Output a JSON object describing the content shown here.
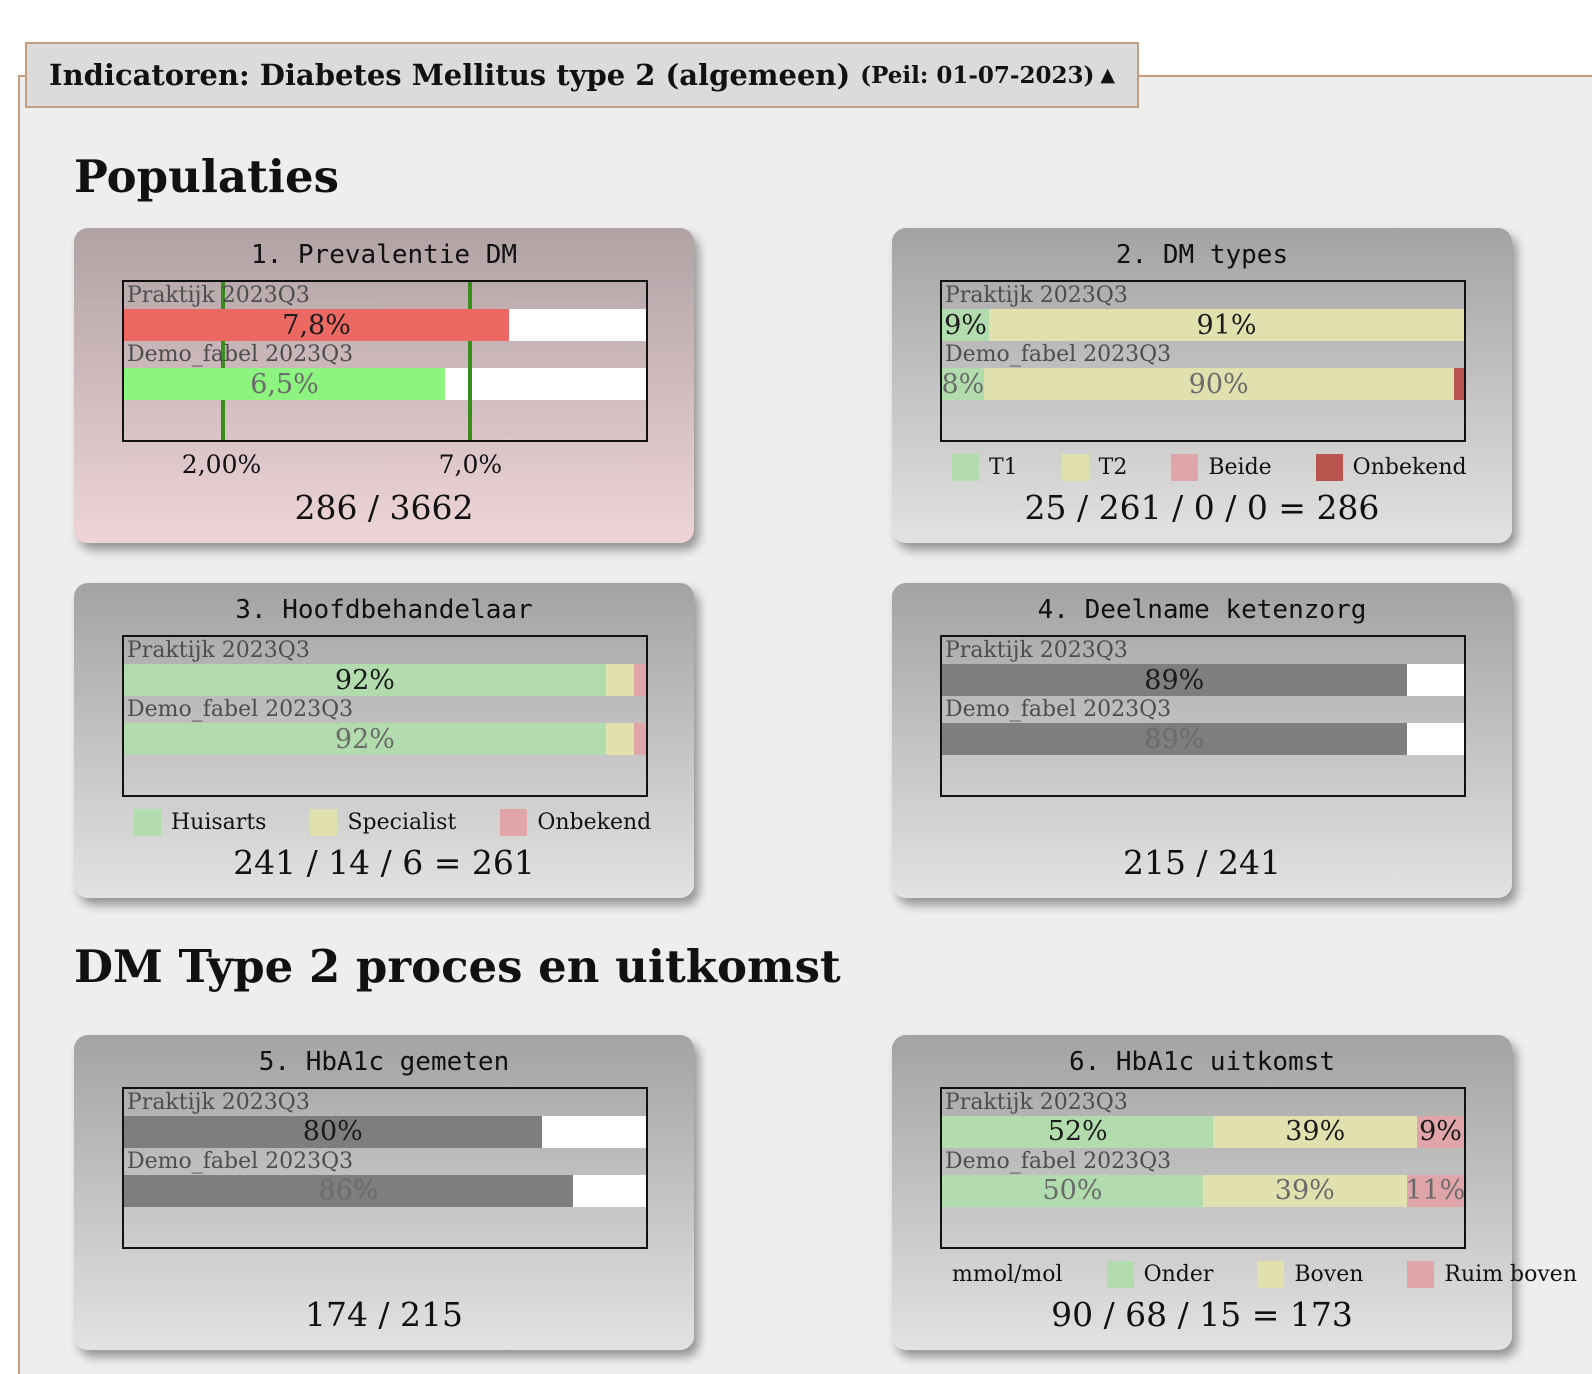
{
  "header": {
    "title": "Indicatoren: Diabetes Mellitus type 2 (algemeen)",
    "peil": "(Peil: 01-07-2023)",
    "collapse_icon": "▲"
  },
  "colors": {
    "page_bg": "#ffffff",
    "panel_bg": "#eeeeee",
    "frame_border": "#c49e7e",
    "header_bg": "#dbdbdb",
    "card_gray_top": "#a3a3a3",
    "card_gray_bottom": "#e2e2e2",
    "card_alert_top": "#b1a2a4",
    "card_alert_bottom": "#eed4d8",
    "threshold_line": "#3a8c1c",
    "bar_red": "#ec6862",
    "bar_bright_green": "#8df57f",
    "bar_green": "#b3dcae",
    "bar_khaki": "#e1e1b0",
    "bar_pink": "#dfa5a9",
    "bar_brick": "#b8544d",
    "bar_gray": "#7e7e7e"
  },
  "sections": [
    {
      "heading": "Populaties",
      "cards": [
        {
          "title": "1. Prevalentie DM",
          "variant": "alert",
          "axis_max": 10.57,
          "rows": [
            {
              "label": "Praktijk 2023Q3",
              "muted": false,
              "segments": [
                {
                  "value": 7.8,
                  "text": "7,8%",
                  "color": "#ec6862"
                }
              ]
            },
            {
              "label": "Demo_fabel 2023Q3",
              "muted": true,
              "segments": [
                {
                  "value": 6.5,
                  "text": "6,5%",
                  "color": "#8df57f"
                }
              ]
            }
          ],
          "thresholds": [
            {
              "value": 2.0,
              "label": "2,00%"
            },
            {
              "value": 7.0,
              "label": "7,0%"
            }
          ],
          "total": "286 / 3662"
        },
        {
          "title": "2. DM types",
          "variant": "normal",
          "axis_max": 100,
          "rows": [
            {
              "label": "Praktijk 2023Q3",
              "muted": false,
              "segments": [
                {
                  "value": 9,
                  "text": "9%",
                  "color": "#b3dcae"
                },
                {
                  "value": 91,
                  "text": "91%",
                  "color": "#e1e1b0"
                }
              ]
            },
            {
              "label": "Demo_fabel 2023Q3",
              "muted": true,
              "segments": [
                {
                  "value": 8,
                  "text": "8%",
                  "color": "#b3dcae"
                },
                {
                  "value": 90,
                  "text": "90%",
                  "color": "#e1e1b0"
                },
                {
                  "value": 2,
                  "text": "",
                  "color": "#b8544d"
                }
              ]
            }
          ],
          "legend": [
            {
              "label": "T1",
              "color": "#b3dcae"
            },
            {
              "label": "T2",
              "color": "#e1e1b0"
            },
            {
              "label": "Beide",
              "color": "#dfa5a9"
            },
            {
              "label": "Onbekend",
              "color": "#b8544d"
            }
          ],
          "total": "25 / 261 / 0 / 0 = 286"
        },
        {
          "title": "3. Hoofdbehandelaar",
          "variant": "normal",
          "axis_max": 100,
          "rows": [
            {
              "label": "Praktijk 2023Q3",
              "muted": false,
              "segments": [
                {
                  "value": 92.3,
                  "text": "92%",
                  "color": "#b3dcae"
                },
                {
                  "value": 5.4,
                  "text": "",
                  "color": "#e1e1b0"
                },
                {
                  "value": 2.3,
                  "text": "",
                  "color": "#dfa5a9"
                }
              ]
            },
            {
              "label": "Demo_fabel 2023Q3",
              "muted": true,
              "segments": [
                {
                  "value": 92.3,
                  "text": "92%",
                  "color": "#b3dcae"
                },
                {
                  "value": 5.4,
                  "text": "",
                  "color": "#e1e1b0"
                },
                {
                  "value": 2.3,
                  "text": "",
                  "color": "#dfa5a9"
                }
              ]
            }
          ],
          "legend": [
            {
              "label": "Huisarts",
              "color": "#b3dcae"
            },
            {
              "label": "Specialist",
              "color": "#e1e1b0"
            },
            {
              "label": "Onbekend",
              "color": "#dfa5a9"
            }
          ],
          "total": "241 / 14 / 6 = 261"
        },
        {
          "title": "4. Deelname ketenzorg",
          "variant": "normal",
          "axis_max": 100,
          "rows": [
            {
              "label": "Praktijk 2023Q3",
              "muted": false,
              "segments": [
                {
                  "value": 89,
                  "text": "89%",
                  "color": "#7e7e7e"
                }
              ]
            },
            {
              "label": "Demo_fabel 2023Q3",
              "muted": true,
              "segments": [
                {
                  "value": 89,
                  "text": "89%",
                  "color": "#7e7e7e"
                }
              ]
            }
          ],
          "total": "215 / 241"
        }
      ]
    },
    {
      "heading": "DM Type 2 proces en uitkomst",
      "cards": [
        {
          "title": "5. HbA1c gemeten",
          "variant": "normal",
          "axis_max": 100,
          "rows": [
            {
              "label": "Praktijk 2023Q3",
              "muted": false,
              "segments": [
                {
                  "value": 80,
                  "text": "80%",
                  "color": "#7e7e7e"
                }
              ]
            },
            {
              "label": "Demo_fabel 2023Q3",
              "muted": true,
              "segments": [
                {
                  "value": 86,
                  "text": "86%",
                  "color": "#7e7e7e"
                }
              ]
            }
          ],
          "total": "174 / 215"
        },
        {
          "title": "6. HbA1c uitkomst",
          "variant": "normal",
          "axis_max": 100,
          "rows": [
            {
              "label": "Praktijk 2023Q3",
              "muted": false,
              "segments": [
                {
                  "value": 52,
                  "text": "52%",
                  "color": "#b3dcae"
                },
                {
                  "value": 39,
                  "text": "39%",
                  "color": "#e1e1b0"
                },
                {
                  "value": 9,
                  "text": "9%",
                  "color": "#dfa5a9"
                }
              ]
            },
            {
              "label": "Demo_fabel 2023Q3",
              "muted": true,
              "segments": [
                {
                  "value": 50,
                  "text": "50%",
                  "color": "#b3dcae"
                },
                {
                  "value": 39,
                  "text": "39%",
                  "color": "#e1e1b0"
                },
                {
                  "value": 11,
                  "text": "11%",
                  "color": "#dfa5a9"
                }
              ]
            }
          ],
          "legend_prefix": "mmol/mol",
          "legend": [
            {
              "label": "Onder",
              "color": "#b3dcae"
            },
            {
              "label": "Boven",
              "color": "#e1e1b0"
            },
            {
              "label": "Ruim boven",
              "color": "#dfa5a9"
            }
          ],
          "total": "90 / 68 / 15 = 173"
        }
      ]
    }
  ]
}
